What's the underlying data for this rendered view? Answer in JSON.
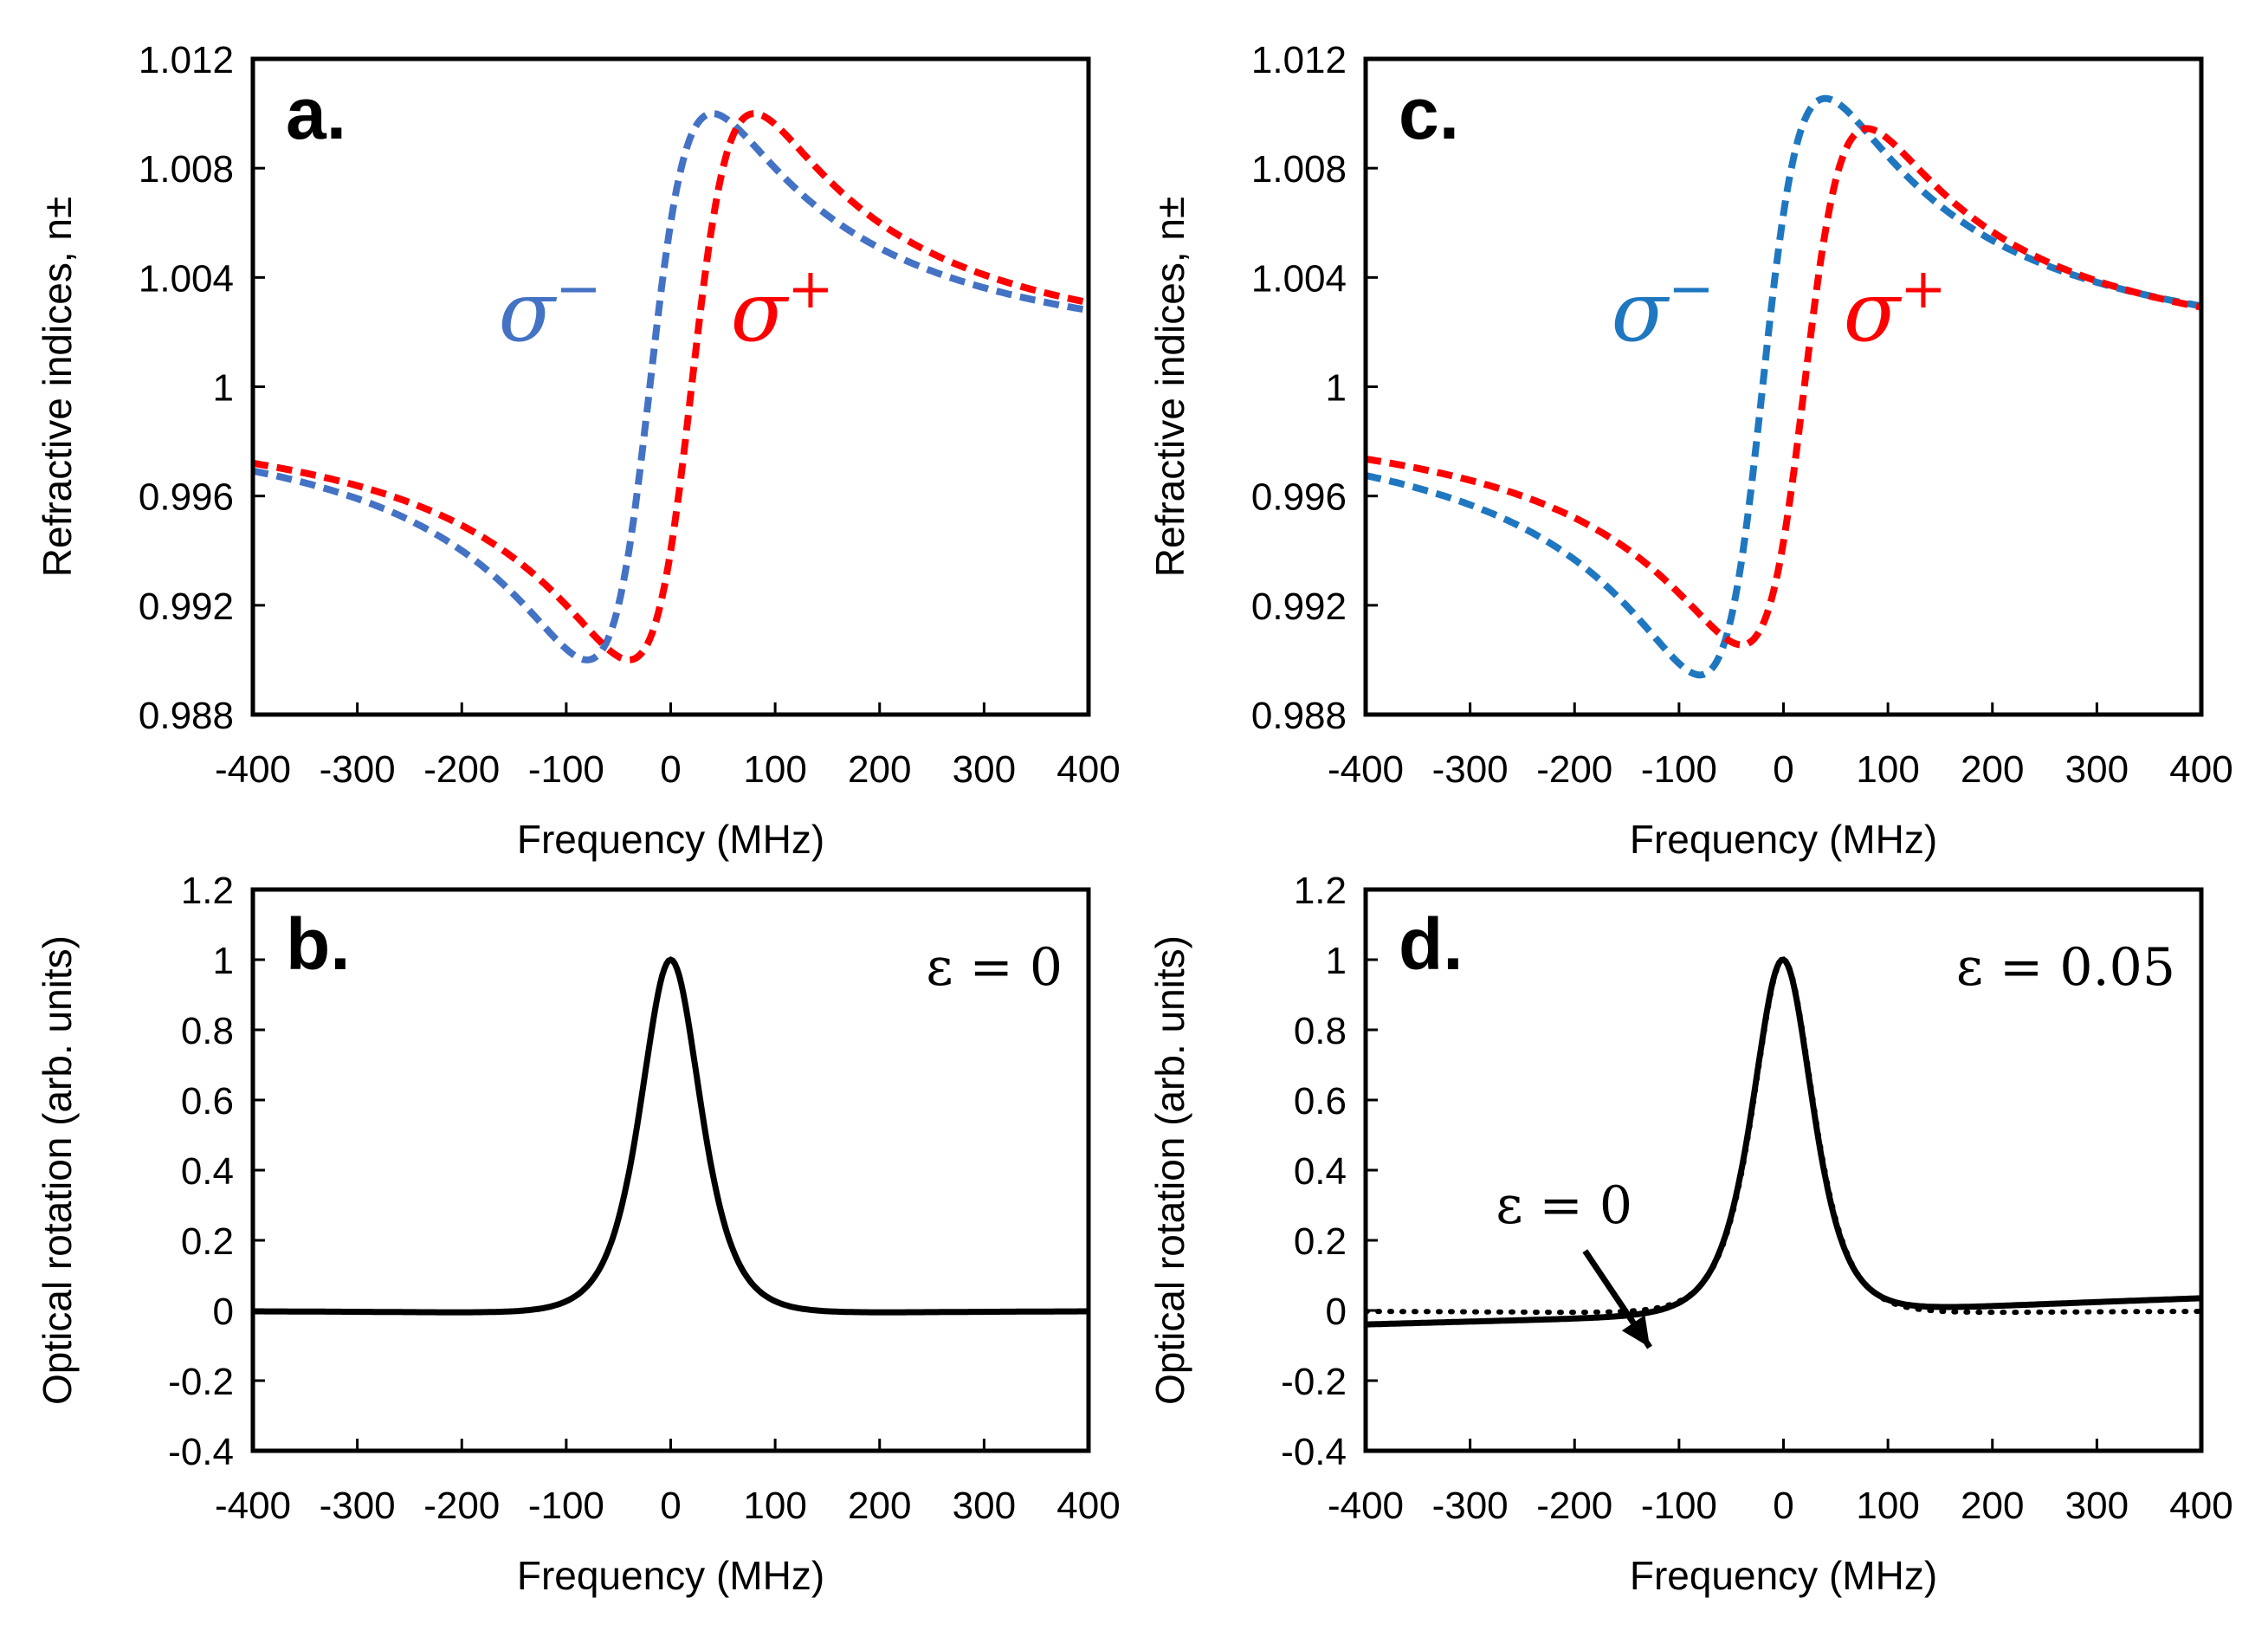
{
  "chart_data": [
    {
      "type": "line",
      "panel_label": "a.",
      "xlabel": "Frequency (MHz)",
      "ylabel": "Refractive indices, n±",
      "xlim": [
        -400,
        400
      ],
      "ylim": [
        0.988,
        1.012
      ],
      "xticks": [
        "-400",
        "-300",
        "-200",
        "-100",
        "0",
        "100",
        "200",
        "300",
        "400"
      ],
      "yticks": [
        "0.988",
        "0.992",
        "0.996",
        "1",
        "1.004",
        "1.008",
        "1.012"
      ],
      "series": [
        {
          "name": "σ⁻",
          "label": "σ",
          "sup": "−",
          "color": "#4472c4",
          "style": "dashed",
          "center": -20,
          "halfwidth": 60,
          "amplitude": 0.02,
          "offset": 1.0
        },
        {
          "name": "σ⁺",
          "label": "σ",
          "sup": "+",
          "color": "#ff0000",
          "style": "dashed",
          "center": 20,
          "halfwidth": 60,
          "amplitude": 0.02,
          "offset": 1.0
        }
      ]
    },
    {
      "type": "line",
      "panel_label": "b.",
      "annotation": "ε = 0",
      "xlabel": "Frequency (MHz)",
      "ylabel": "Optical rotation (arb. units)",
      "xlim": [
        -400,
        400
      ],
      "ylim": [
        -0.4,
        1.2
      ],
      "xticks": [
        "-400",
        "-300",
        "-200",
        "-100",
        "0",
        "100",
        "200",
        "300",
        "400"
      ],
      "yticks": [
        "-0.4",
        "-0.2",
        "0",
        "0.2",
        "0.4",
        "0.6",
        "0.8",
        "1",
        "1.2"
      ],
      "series": [
        {
          "name": "ε = 0",
          "color": "#000000",
          "style": "solid",
          "epsilon": 0
        }
      ]
    },
    {
      "type": "line",
      "panel_label": "c.",
      "xlabel": "Frequency (MHz)",
      "ylabel": "Refractive indices, n±",
      "xlim": [
        -400,
        400
      ],
      "ylim": [
        0.988,
        1.012
      ],
      "xticks": [
        "-400",
        "-300",
        "-200",
        "-100",
        "0",
        "100",
        "200",
        "300",
        "400"
      ],
      "yticks": [
        "0.988",
        "0.992",
        "0.996",
        "1",
        "1.004",
        "1.008",
        "1.012"
      ],
      "series": [
        {
          "name": "σ⁻",
          "label": "σ",
          "sup": "−",
          "color": "#1f77c0",
          "style": "dashed",
          "center": -20,
          "halfwidth": 60,
          "amplitude": 0.0211,
          "offset": 1.0
        },
        {
          "name": "σ⁺",
          "label": "σ",
          "sup": "+",
          "color": "#ff0000",
          "style": "dashed",
          "center": 20,
          "halfwidth": 60,
          "amplitude": 0.0189,
          "offset": 1.0
        }
      ]
    },
    {
      "type": "line",
      "panel_label": "d.",
      "annotation": "ε = 0.05",
      "arrow_annotation": "ε = 0",
      "xlabel": "Frequency (MHz)",
      "ylabel": "Optical rotation (arb. units)",
      "xlim": [
        -400,
        400
      ],
      "ylim": [
        -0.4,
        1.2
      ],
      "xticks": [
        "-400",
        "-300",
        "-200",
        "-100",
        "0",
        "100",
        "200",
        "300",
        "400"
      ],
      "yticks": [
        "-0.4",
        "-0.2",
        "0",
        "0.2",
        "0.4",
        "0.6",
        "0.8",
        "1",
        "1.2"
      ],
      "series": [
        {
          "name": "ε = 0.05",
          "color": "#000000",
          "style": "solid",
          "epsilon": 0.05
        },
        {
          "name": "ε = 0",
          "color": "#000000",
          "style": "dotted",
          "epsilon": 0
        }
      ]
    }
  ]
}
